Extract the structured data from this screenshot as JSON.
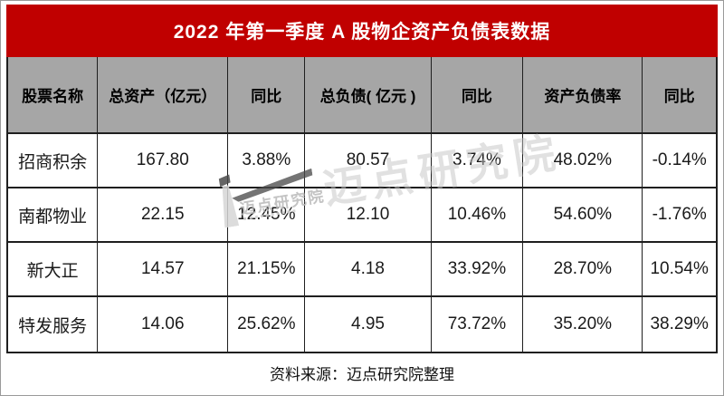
{
  "title": "2022 年第一季度 A 股物企资产负债表数据",
  "source_note": "资料来源：迈点研究院整理",
  "watermark": {
    "brand_text_large": "迈点研究院",
    "brand_text_small": "迈点研究院"
  },
  "colors": {
    "banner_bg": "#c00000",
    "banner_text": "#ffffff",
    "header_bg": "#a6a6a6",
    "header_text": "#000000",
    "grid_border": "#1f1f1f",
    "watermark_gray": "#c3c3c3"
  },
  "chart_data": {
    "type": "table",
    "title": "2022 年第一季度 A 股物企资产负债表数据",
    "columns": [
      "股票名称",
      "总资产（亿元）",
      "同比",
      "总负债( 亿元 )",
      "同比",
      "资产负债率",
      "同比"
    ],
    "rows": [
      [
        "招商积余",
        "167.80",
        "3.88%",
        "80.57",
        "3.74%",
        "48.02%",
        "-0.14%"
      ],
      [
        "南都物业",
        "22.15",
        "12.45%",
        "12.10",
        "10.46%",
        "54.60%",
        "-1.76%"
      ],
      [
        "新大正",
        "14.57",
        "21.15%",
        "4.18",
        "33.92%",
        "28.70%",
        "10.54%"
      ],
      [
        "特发服务",
        "14.06",
        "25.62%",
        "4.95",
        "73.72%",
        "35.20%",
        "38.29%"
      ]
    ],
    "source": "资料来源：迈点研究院整理",
    "layout": "red title banner, gray header row, 4 white data rows, centered source note"
  }
}
